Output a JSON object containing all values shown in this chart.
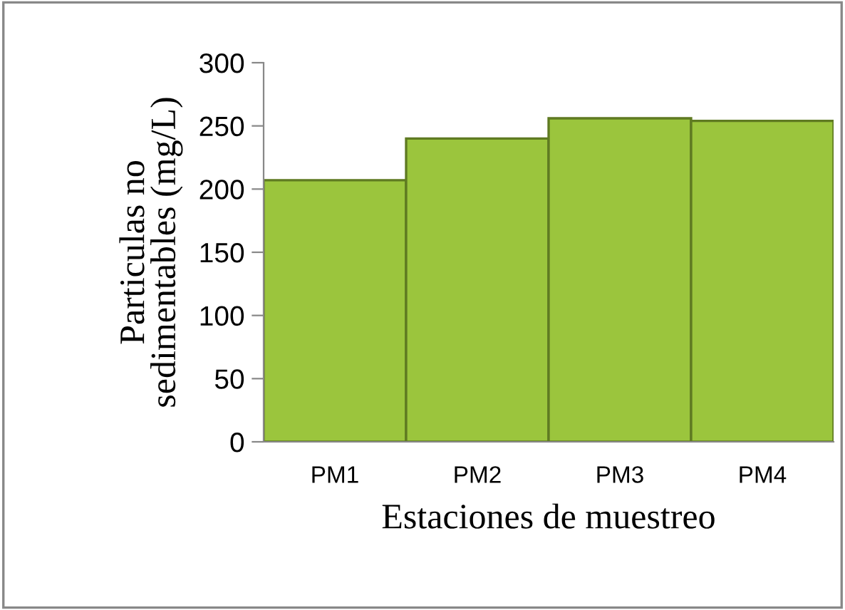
{
  "chart_data": {
    "type": "bar",
    "categories": [
      "PM1",
      "PM2",
      "PM3",
      "PM4"
    ],
    "values": [
      207,
      240,
      256,
      254
    ],
    "color": "#9bc53d",
    "xlabel": "Estaciones de muestreo",
    "ylabel": "Particulas no\nsedimentables (mg/L)",
    "ylim": [
      0,
      300
    ],
    "yticks": [
      0,
      50,
      100,
      150,
      200,
      250,
      300
    ],
    "grid": false,
    "legend": false
  }
}
